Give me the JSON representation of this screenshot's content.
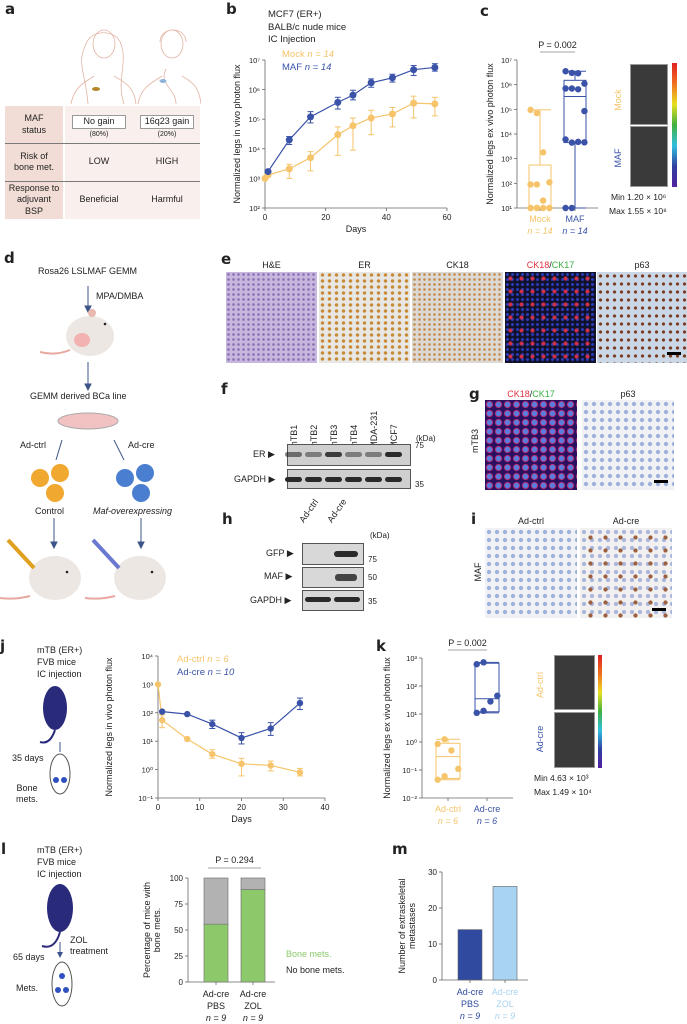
{
  "panels": {
    "a": "a",
    "b": "b",
    "c": "c",
    "d": "d",
    "e": "e",
    "f": "f",
    "g": "g",
    "h": "h",
    "i": "i",
    "j": "j",
    "k": "k",
    "l": "l",
    "m": "m"
  },
  "a": {
    "rows": [
      {
        "label": "MAF status",
        "col1": "No gain",
        "col1_sub": "(80%)",
        "col2": "16q23 gain",
        "col2_sub": "(20%)"
      },
      {
        "label": "Risk of bone met.",
        "col1": "LOW",
        "col2": "HIGH"
      },
      {
        "label": "Response to adjuvant BSP",
        "col1": "Beneficial",
        "col2": "Harmful"
      }
    ]
  },
  "b": {
    "info": [
      "MCF7 (ER+)",
      "BALB/c nude mice",
      "IC Injection"
    ]
  },
  "c": {
    "img_labels": [
      "Mock",
      "MAF"
    ],
    "min": "Min 1.20 × 10⁶",
    "max": "Max 1.55 × 10⁸"
  },
  "d": {
    "gemm": "Rosa26 LSLMAF GEMM",
    "treat": "MPA/DMBA",
    "line": "GEMM derived BCa line",
    "left_arrow": "Ad-ctrl",
    "right_arrow": "Ad-cre",
    "left_cells": "Control",
    "right_cells": "Maf-overexpressing"
  },
  "e": {
    "titles": [
      "H&E",
      "ER",
      "CK18",
      "CK18",
      "/",
      "CK17",
      "p63"
    ]
  },
  "f": {
    "lanes": [
      "mTB1",
      "mTB2",
      "mTB3",
      "mTB4",
      "MDA-231",
      "MCF7"
    ],
    "kda": "(kDa)",
    "rows": [
      "ER ▶",
      "GAPDH ▶"
    ],
    "markers": [
      "75",
      "35"
    ]
  },
  "g": {
    "titles": [
      "CK18",
      "/",
      "CK17",
      "p63"
    ],
    "row": "mTB3"
  },
  "h": {
    "lanes": [
      "Ad-ctrl",
      "Ad-cre"
    ],
    "kda": "(kDa)",
    "rows": [
      "GFP ▶",
      "MAF ▶",
      "GAPDH ▶"
    ],
    "markers": [
      "75",
      "50",
      "35"
    ]
  },
  "i": {
    "titles": [
      "Ad-ctrl",
      "Ad-cre"
    ],
    "row": "MAF"
  },
  "j": {
    "info": [
      "mTB (ER+)",
      "FVB mice",
      "IC injection"
    ],
    "time": "35 days",
    "outcome": "Bone mets."
  },
  "k": {
    "img_labels": [
      "Ad-ctrl",
      "Ad-cre"
    ],
    "min": "Min 4.63 × 10³",
    "max": "Max 1.49 × 10⁴"
  },
  "l": {
    "info": [
      "mTB (ER+)",
      "FVB mice",
      "IC injection"
    ],
    "treat": "ZOL treatment",
    "time": "65 days",
    "outcome": "Mets."
  },
  "colors": {
    "mock": "#f6c46a",
    "maf": "#3a52a8",
    "zol": "#a8d3f1",
    "bone": "#8cc96b",
    "nobone": "#b2b2b2"
  },
  "chart_data": [
    {
      "id": "b",
      "type": "line",
      "xlabel": "Days",
      "ylabel": "Normalized legs in vivo photon flux",
      "yscale": "log",
      "ylim": [
        100,
        10000000
      ],
      "xlim": [
        0,
        60
      ],
      "xticks": [
        0,
        20,
        40,
        60
      ],
      "yticks": [
        "10²",
        "10³",
        "10⁴",
        "10⁵",
        "10⁶",
        "10⁷"
      ],
      "series": [
        {
          "name": "Mock",
          "n": "n = 14",
          "color": "#f6c46a",
          "x": [
            0,
            1,
            8,
            15,
            24,
            29,
            35,
            42,
            49,
            56
          ],
          "y": [
            1000,
            1300,
            2100,
            5000,
            30000,
            60000,
            110000,
            150000,
            350000,
            330000
          ],
          "lo": [
            null,
            null,
            1000,
            1800,
            6000,
            9000,
            30000,
            55000,
            110000,
            130000
          ],
          "hi": [
            null,
            null,
            3000,
            8000,
            55000,
            110000,
            200000,
            250000,
            600000,
            550000
          ]
        },
        {
          "name": "MAF",
          "n": "n = 14",
          "color": "#3a52a8",
          "x": [
            1,
            8,
            15,
            24,
            29,
            35,
            42,
            49,
            56
          ],
          "y": [
            1700,
            20000,
            120000,
            370000,
            650000,
            1700000,
            2500000,
            4700000,
            5600000
          ],
          "lo": [
            null,
            14000,
            75000,
            220000,
            450000,
            1200000,
            1800000,
            3000000,
            4200000
          ],
          "hi": [
            null,
            26000,
            180000,
            550000,
            950000,
            2300000,
            3300000,
            6500000,
            7500000
          ]
        }
      ]
    },
    {
      "id": "c",
      "type": "box",
      "ylabel": "Normalized legs ex vivo photon flux",
      "yscale": "log",
      "ylim": [
        10,
        10000000
      ],
      "yticks": [
        "10¹",
        "10²",
        "10³",
        "10⁴",
        "10⁵",
        "10⁶",
        "10⁷"
      ],
      "annotation": "P = 0.002",
      "groups": [
        {
          "name": "Mock",
          "n": "n = 14",
          "color": "#f6c46a",
          "points": [
            95000,
            70000,
            1800,
            110,
            90,
            90,
            20,
            10,
            10,
            10,
            10,
            10,
            10,
            10
          ],
          "box": {
            "min": 10,
            "q1": 10,
            "median": 10,
            "q3": 550,
            "max": 95000
          }
        },
        {
          "name": "MAF",
          "n": "n = 14",
          "color": "#3a52a8",
          "points": [
            3500000,
            3000000,
            2900000,
            1100000,
            700000,
            700000,
            650000,
            85000,
            6000,
            4500,
            4800,
            4600,
            10,
            10
          ],
          "box": {
            "min": 10,
            "q1": 4500,
            "median": 330000,
            "q3": 1500000,
            "max": 3500000
          }
        }
      ]
    },
    {
      "id": "j",
      "type": "line",
      "xlabel": "Days",
      "ylabel": "Normalized legs in vivo photon flux",
      "yscale": "log",
      "ylim": [
        0.1,
        10000
      ],
      "xlim": [
        0,
        40
      ],
      "xticks": [
        0,
        10,
        20,
        30,
        40
      ],
      "yticks": [
        "10⁻¹",
        "10⁰",
        "10¹",
        "10²",
        "10³",
        "10⁴"
      ],
      "series": [
        {
          "name": "Ad-ctrl",
          "n": "n = 6",
          "color": "#f6c46a",
          "x": [
            0,
            1,
            7,
            13,
            20,
            27,
            34
          ],
          "y": [
            1000,
            55,
            12,
            3.5,
            1.6,
            1.4,
            0.8
          ],
          "lo": [
            null,
            30,
            null,
            2.5,
            0.6,
            0.9,
            0.6
          ],
          "hi": [
            null,
            85,
            null,
            5,
            2.5,
            2,
            1.1
          ]
        },
        {
          "name": "Ad-cre",
          "n": "n = 10",
          "color": "#3a52a8",
          "x": [
            1,
            7,
            13,
            20,
            27,
            34
          ],
          "y": [
            110,
            90,
            40,
            13,
            28,
            220
          ],
          "lo": [
            null,
            null,
            28,
            8,
            16,
            130
          ],
          "hi": [
            null,
            null,
            55,
            20,
            45,
            330
          ]
        }
      ]
    },
    {
      "id": "k",
      "type": "box",
      "ylabel": "Normalized legs ex vivo photon flux",
      "yscale": "log",
      "ylim": [
        0.01,
        1000
      ],
      "yticks": [
        "10⁻²",
        "10⁻¹",
        "10⁰",
        "10¹",
        "10²",
        "10³"
      ],
      "annotation": "P = 0.002",
      "groups": [
        {
          "name": "Ad-ctrl",
          "n": "n = 6",
          "color": "#f6c46a",
          "points": [
            0.85,
            1.25,
            0.5,
            0.11,
            0.045,
            0.06
          ],
          "box": {
            "min": 0.045,
            "q1": 0.05,
            "median": 0.3,
            "q3": 0.9,
            "max": 1.25
          }
        },
        {
          "name": "Ad-cre",
          "n": "n = 6",
          "color": "#3a52a8",
          "points": [
            600,
            700,
            28,
            45,
            11,
            13
          ],
          "box": {
            "min": 11,
            "q1": 12,
            "median": 35,
            "q3": 650,
            "max": 700
          }
        }
      ]
    },
    {
      "id": "l",
      "type": "stacked-bar",
      "ylabel": "Percentage of mice with bone mets.",
      "ylim": [
        0,
        100
      ],
      "yticks": [
        0,
        25,
        50,
        75,
        100
      ],
      "annotation": "P = 0.294",
      "categories": [
        [
          "Ad-cre",
          "PBS",
          "n = 9"
        ],
        [
          "Ad-cre",
          "ZOL",
          "n = 9"
        ]
      ],
      "series": [
        {
          "name": "Bone mets.",
          "color": "#8cc96b",
          "values": [
            55.6,
            88.9
          ]
        },
        {
          "name": "No bone mets.",
          "color": "#b2b2b2",
          "values": [
            44.4,
            11.1
          ]
        }
      ],
      "legend": "right"
    },
    {
      "id": "m",
      "type": "bar",
      "ylabel": "Number of extraskeletal metastases",
      "ylim": [
        0,
        30
      ],
      "yticks": [
        0,
        10,
        20,
        30
      ],
      "categories": [
        [
          "Ad-cre",
          "PBS",
          "n = 9"
        ],
        [
          "Ad-cre",
          "ZOL",
          "n = 9"
        ]
      ],
      "values": [
        14,
        26
      ],
      "colors": [
        "#2f4a9e",
        "#a8d3f1"
      ]
    }
  ]
}
